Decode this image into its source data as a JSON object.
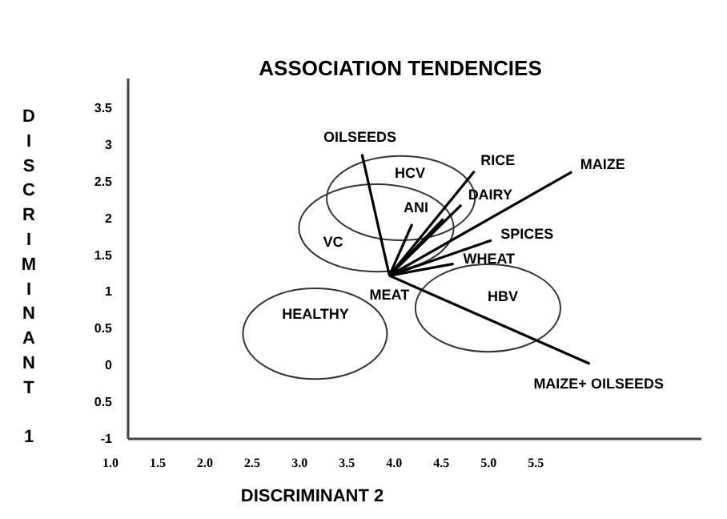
{
  "chart_data": {
    "type": "line",
    "title": "ASSOCIATION  TENDENCIES",
    "xlabel": "DISCRIMINANT 2",
    "ylabel": "DISCRIMINANT 1",
    "xlim": [
      1.0,
      7.25
    ],
    "ylim": [
      -1,
      3.9
    ],
    "xticks": [
      {
        "value": 1.0,
        "label": "1.0"
      },
      1.5,
      {
        "value": 2.0,
        "label": "2.0"
      },
      2.5,
      {
        "value": 3.0,
        "label": "3.0"
      },
      3.5,
      {
        "value": 4.0,
        "label": "4.0"
      },
      4.5,
      {
        "value": 5.0,
        "label": "5.0"
      },
      5.5
    ],
    "yticks": [
      3.5,
      3,
      2.5,
      2,
      1.5,
      1,
      0.5,
      0,
      {
        "value": -0.5,
        "label": "0.5"
      },
      -1
    ],
    "grid": false,
    "marker": "none",
    "line_style": "solid",
    "series": [
      {
        "name": "OILSEEDS",
        "color": "#000000",
        "x": [
          3.95,
          3.66
        ],
        "values": [
          1.22,
          2.87
        ]
      },
      {
        "name": "RICE",
        "color": "#000000",
        "x": [
          3.95,
          4.85
        ],
        "values": [
          1.22,
          2.64
        ]
      },
      {
        "name": "MAIZE",
        "color": "#000000",
        "x": [
          3.95,
          5.88
        ],
        "values": [
          1.22,
          2.63
        ]
      },
      {
        "name": "DAIRY",
        "color": "#000000",
        "x": [
          3.95,
          4.71
        ],
        "values": [
          1.22,
          2.18
        ]
      },
      {
        "name": "ANI",
        "color": "#000000",
        "x": [
          3.95,
          4.19
        ],
        "values": [
          1.22,
          1.92
        ]
      },
      {
        "color": "#000000",
        "x": [
          3.95,
          4.52
        ],
        "values": [
          1.22,
          1.99
        ]
      },
      {
        "name": "SPICES",
        "color": "#000000",
        "x": [
          3.95,
          5.03
        ],
        "values": [
          1.22,
          1.7
        ]
      },
      {
        "name": "WHEAT",
        "color": "#000000",
        "x": [
          3.95,
          4.63
        ],
        "values": [
          1.22,
          1.38
        ]
      },
      {
        "name": "MAIZE+ OILSEEDS",
        "color": "#000000",
        "x": [
          3.95,
          6.07
        ],
        "values": [
          1.22,
          0.02
        ]
      }
    ],
    "annotations": [
      "HCV",
      "VC",
      "HBV",
      "HEALTHY",
      {
        "text": "MEAT",
        "x": 3.95,
        "y": 1.22
      }
    ]
  }
}
